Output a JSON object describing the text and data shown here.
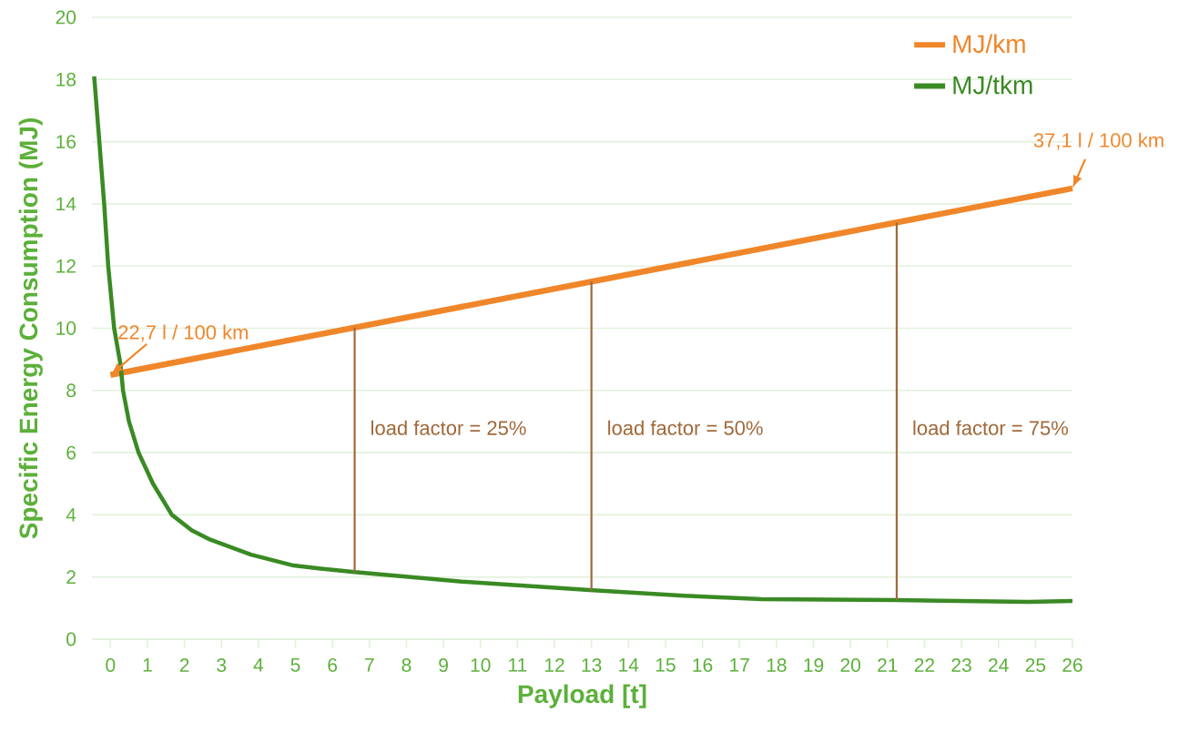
{
  "chart_data": {
    "type": "line",
    "xlabel": "Payload [t]",
    "ylabel": "Specific Energy Consumption (MJ)",
    "xlim": [
      -0.5,
      26
    ],
    "xticks": [
      0,
      1,
      2,
      3,
      4,
      5,
      6,
      7,
      8,
      9,
      10,
      11,
      12,
      13,
      14,
      15,
      16,
      17,
      18,
      19,
      20,
      21,
      22,
      23,
      24,
      25,
      26
    ],
    "ylim": [
      0,
      20
    ],
    "yticks": [
      0,
      2,
      4,
      6,
      8,
      10,
      12,
      14,
      16,
      18,
      20
    ],
    "grid": "y",
    "legend": "top right",
    "line_style": "solid",
    "marker": "none",
    "series": [
      {
        "name": "MJ/km",
        "color": "#f0862a",
        "x": [
          0,
          26
        ],
        "values": [
          8.5,
          14.5
        ]
      },
      {
        "name": "MJ/tkm",
        "color": "#3a8a24",
        "x": [
          -0.44,
          -0.3,
          -0.17,
          -0.06,
          0.1,
          0.27,
          0.34,
          0.5,
          0.76,
          1.15,
          1.66,
          2.2,
          2.7,
          3.8,
          4.95,
          5.63,
          6.6,
          9.5,
          12.95,
          15.5,
          17.6,
          21.25,
          24.8,
          26
        ],
        "values": [
          18.1,
          16,
          14,
          12,
          10,
          8.85,
          8,
          7,
          6,
          5,
          4,
          3.5,
          3.2,
          2.72,
          2.37,
          2.28,
          2.16,
          1.85,
          1.58,
          1.4,
          1.29,
          1.26,
          1.2,
          1.23
        ]
      },
      {
        "color": "#a0693a",
        "x": [
          6.6,
          6.6
        ],
        "values": [
          2.15,
          10.02
        ]
      },
      {
        "color": "#a0693a",
        "x": [
          13,
          13
        ],
        "values": [
          1.57,
          11.5
        ]
      },
      {
        "color": "#a0693a",
        "x": [
          21.25,
          21.25
        ],
        "values": [
          1.26,
          13.4
        ]
      }
    ],
    "annotations": [
      {
        "text": "22,7 l / 100 km",
        "x": 0,
        "y": 8.5
      },
      {
        "text": "37,1 l / 100 km",
        "x": 26,
        "y": 14.5
      },
      "load factor = 25%",
      "load factor = 50%",
      "load factor = 75%"
    ]
  }
}
